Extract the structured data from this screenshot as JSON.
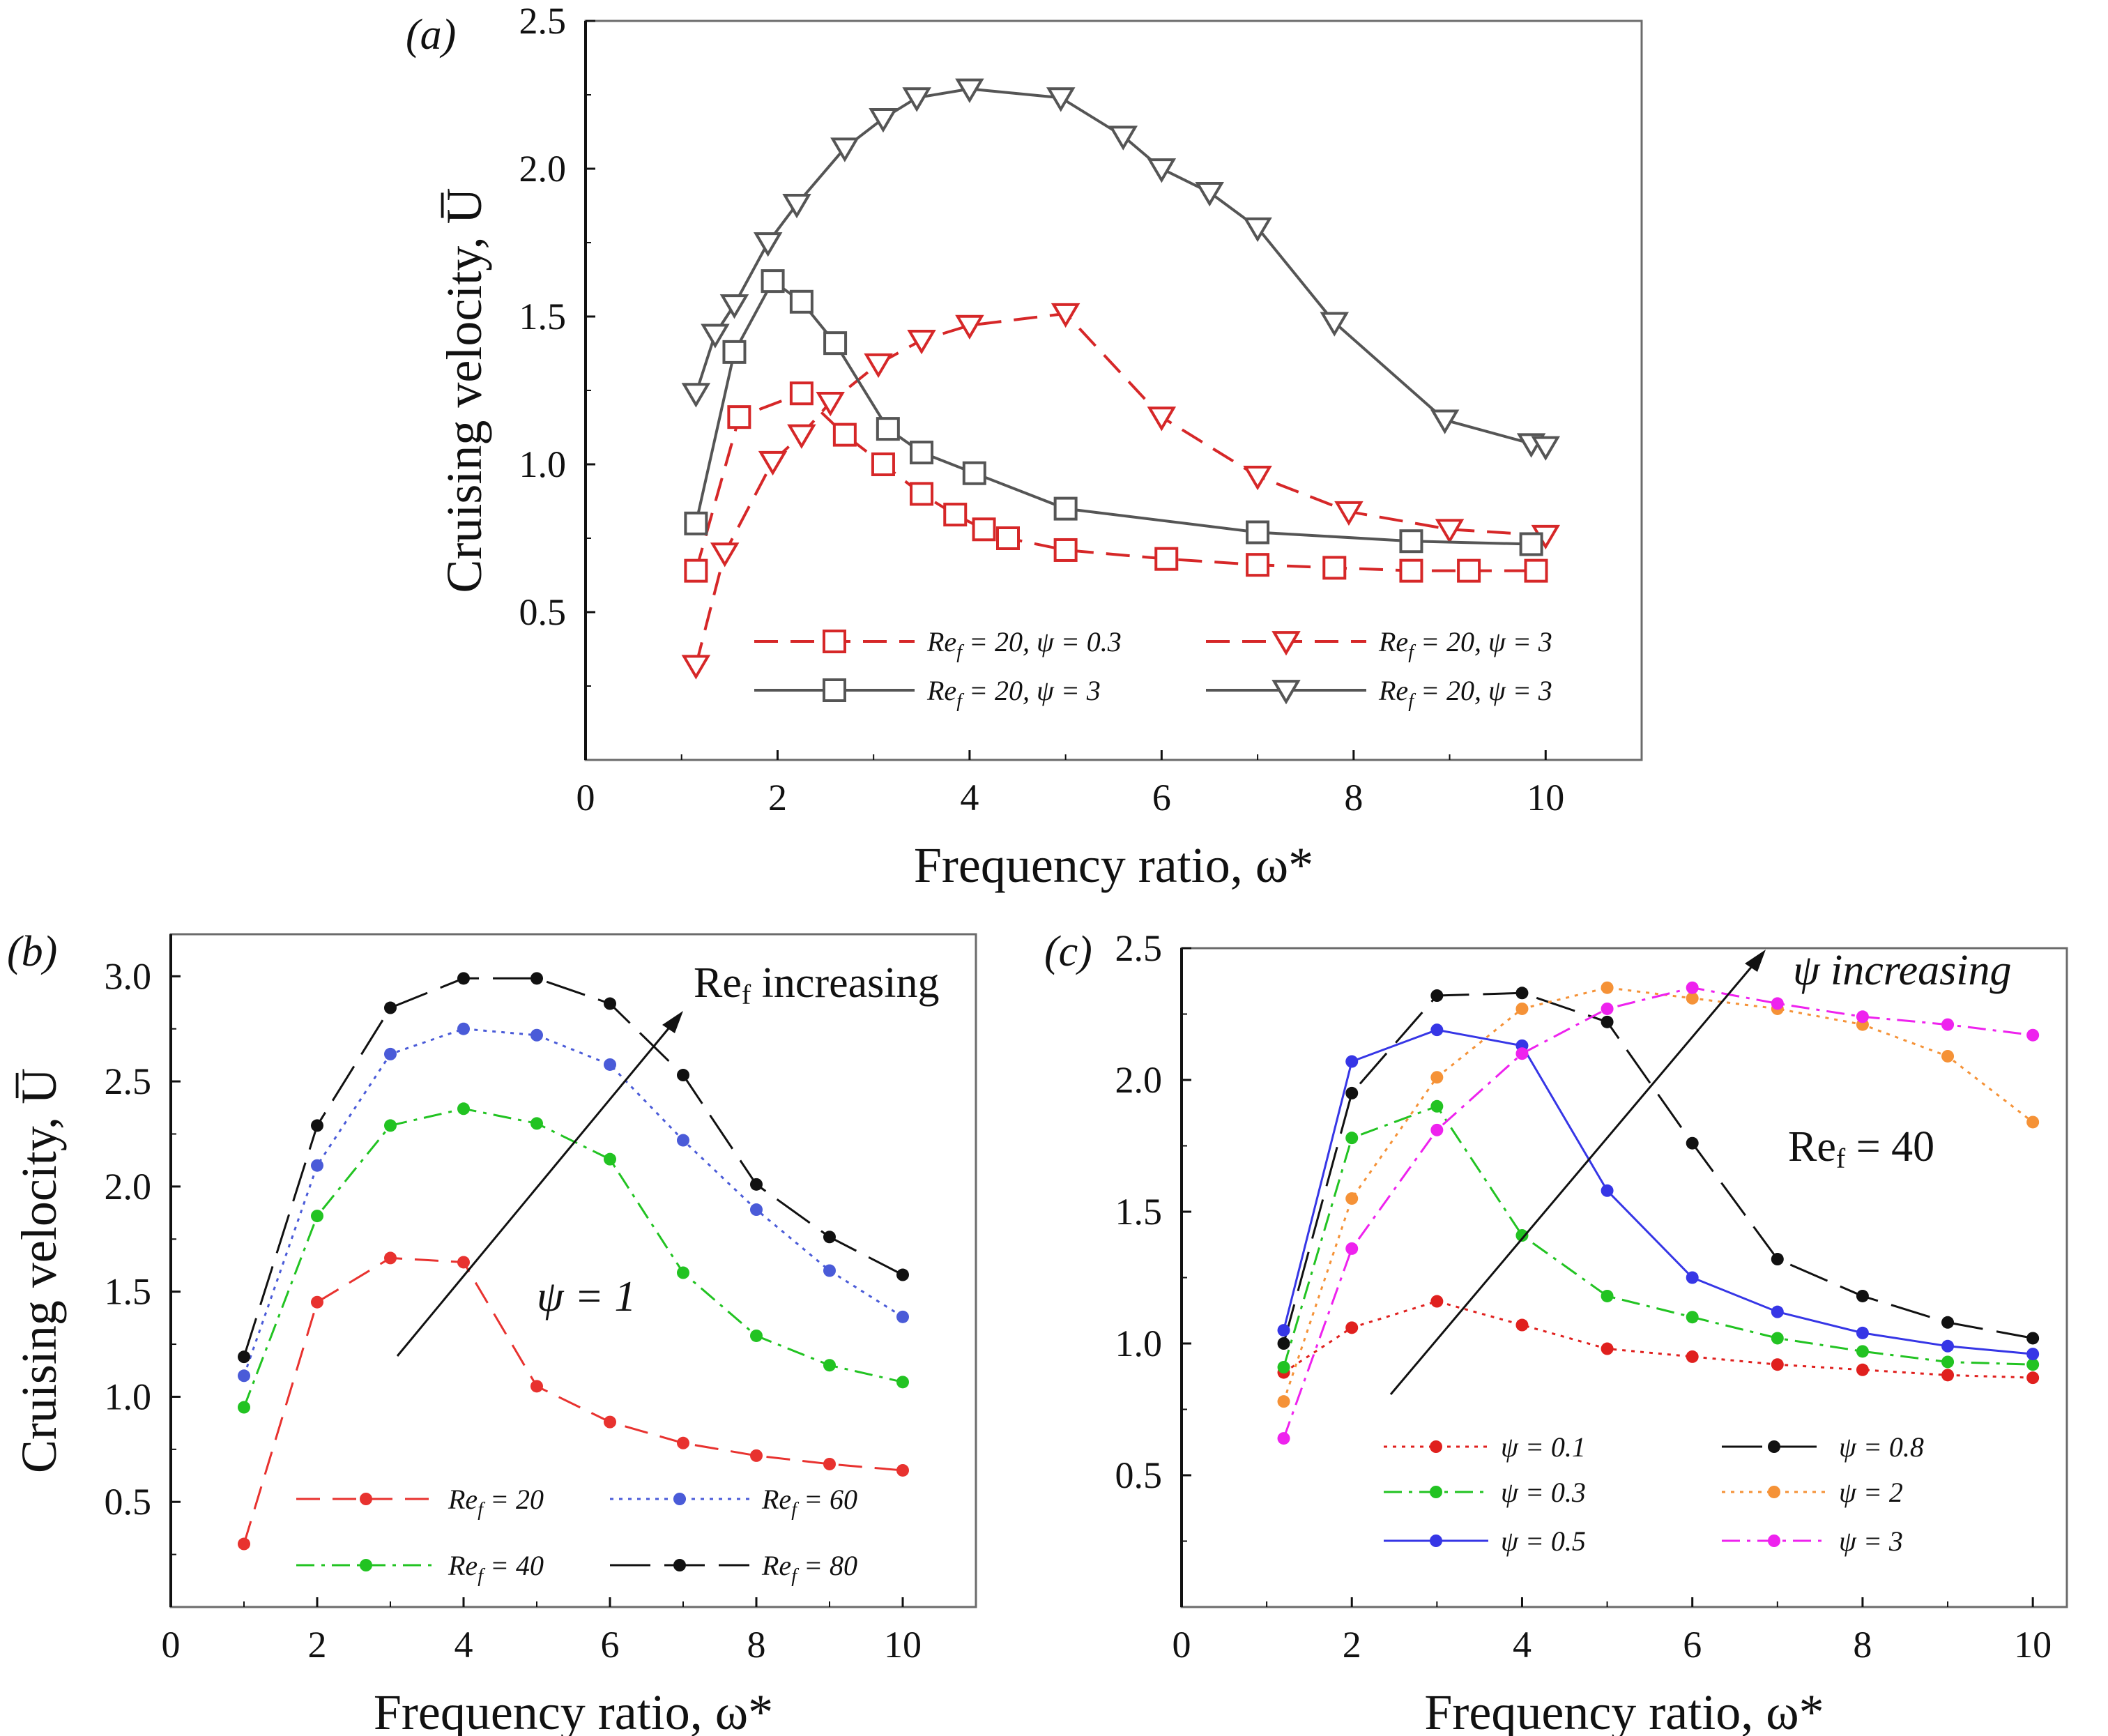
{
  "chart_data": [
    {
      "type": "line",
      "panel_label": "(a)",
      "xlabel": "Frequency ratio, ω*",
      "ylabel": "Cruising velocity, U̅",
      "xlim": [
        0,
        11.0
      ],
      "ylim": [
        0,
        2.5
      ],
      "xticks": [
        "0",
        "2",
        "4",
        "6",
        "8",
        "10"
      ],
      "xtick_values": [
        0,
        2,
        4,
        6,
        8,
        10
      ],
      "yticks": [
        "0.5",
        "1.0",
        "1.5",
        "2.0",
        "2.5"
      ],
      "ytick_values": [
        0.5,
        1.0,
        1.5,
        2.0,
        2.5
      ],
      "legend_position": "lower-middle, two columns",
      "series": [
        {
          "name": "Re_f = 20, ψ = 0.3",
          "label_main": "Re",
          "label_sub": "f",
          "label_rest": " = 20, ψ = 0.3",
          "color": "#d62728",
          "dash": "dashed",
          "marker": "square",
          "x": [
            1.15,
            1.6,
            2.25,
            2.7,
            3.1,
            3.5,
            3.85,
            4.15,
            4.4,
            5.0,
            6.05,
            7.0,
            7.8,
            8.6,
            9.2,
            9.9
          ],
          "y": [
            0.64,
            1.16,
            1.24,
            1.1,
            1.0,
            0.9,
            0.83,
            0.78,
            0.75,
            0.71,
            0.68,
            0.66,
            0.65,
            0.64,
            0.64,
            0.64
          ]
        },
        {
          "name": "Re_f = 20, ψ = 3 (red)",
          "label_main": "Re",
          "label_sub": "f",
          "label_rest": " = 20, ψ = 3",
          "color": "#d62728",
          "dash": "dashed",
          "marker": "triangle-down",
          "x": [
            1.15,
            1.45,
            1.95,
            2.25,
            2.55,
            3.05,
            3.5,
            4.0,
            5.0,
            6.0,
            7.0,
            7.95,
            9.0,
            10.0
          ],
          "y": [
            0.32,
            0.7,
            1.01,
            1.1,
            1.21,
            1.34,
            1.42,
            1.47,
            1.51,
            1.16,
            0.96,
            0.84,
            0.78,
            0.76
          ]
        },
        {
          "name": "Re_f = 20, ψ = 3 (grey, squares)",
          "label_main": "Re",
          "label_sub": "f",
          "label_rest": " = 20, ψ = 3",
          "color": "#555555",
          "dash": "solid",
          "marker": "square",
          "x": [
            1.15,
            1.55,
            1.95,
            2.25,
            2.6,
            3.15,
            3.5,
            4.05,
            5.0,
            7.0,
            8.6,
            9.85
          ],
          "y": [
            0.8,
            1.38,
            1.62,
            1.55,
            1.41,
            1.12,
            1.04,
            0.97,
            0.85,
            0.77,
            0.74,
            0.73
          ]
        },
        {
          "name": "Re_f = 20, ψ = 3 (grey, triangles)",
          "label_main": "Re",
          "label_sub": "f",
          "label_rest": " = 20, ψ = 3",
          "color": "#555555",
          "dash": "solid",
          "marker": "triangle-down",
          "x": [
            1.15,
            1.35,
            1.55,
            1.9,
            2.2,
            2.7,
            3.1,
            3.45,
            4.0,
            4.95,
            5.6,
            6.0,
            6.5,
            7.0,
            7.8,
            8.95,
            9.85,
            10.0
          ],
          "y": [
            1.24,
            1.44,
            1.54,
            1.75,
            1.88,
            2.07,
            2.17,
            2.24,
            2.27,
            2.24,
            2.11,
            2.0,
            1.92,
            1.8,
            1.48,
            1.15,
            1.07,
            1.06
          ]
        }
      ]
    },
    {
      "type": "line",
      "panel_label": "(b)",
      "xlabel": "Frequency ratio, ω*",
      "ylabel": "Cruising velocity, U̅",
      "xlim": [
        0,
        11.0
      ],
      "ylim": [
        0,
        3.2
      ],
      "xticks": [
        "0",
        "2",
        "4",
        "6",
        "8",
        "10"
      ],
      "xtick_values": [
        0,
        2,
        4,
        6,
        8,
        10
      ],
      "yticks": [
        "0.5",
        "1.0",
        "1.5",
        "2.0",
        "2.5",
        "3.0"
      ],
      "ytick_values": [
        0.5,
        1.0,
        1.5,
        2.0,
        2.5,
        3.0
      ],
      "annotations": {
        "arrow_label_main": "Re",
        "arrow_label_sub": "f",
        "arrow_label_rest": " increasing",
        "psi_label": "ψ = 1"
      },
      "series": [
        {
          "name": "Re_f = 20",
          "label_main": "Re",
          "label_sub": "f",
          "label_rest": " = 20",
          "color": "#e8322f",
          "dash": "dashed",
          "x": [
            1,
            2,
            3,
            4,
            5,
            6,
            7,
            8,
            9,
            10
          ],
          "y": [
            0.3,
            1.45,
            1.66,
            1.64,
            1.05,
            0.88,
            0.78,
            0.72,
            0.68,
            0.65
          ]
        },
        {
          "name": "Re_f = 60",
          "label_main": "Re",
          "label_sub": "f",
          "label_rest": " = 60",
          "color": "#4a5bd8",
          "dash": "dotted",
          "x": [
            1,
            2,
            3,
            4,
            5,
            6,
            7,
            8,
            9,
            10
          ],
          "y": [
            1.1,
            2.1,
            2.63,
            2.75,
            2.72,
            2.58,
            2.22,
            1.89,
            1.6,
            1.38
          ]
        },
        {
          "name": "Re_f = 40",
          "label_main": "Re",
          "label_sub": "f",
          "label_rest": " = 40",
          "color": "#22c322",
          "dash": "dashdot",
          "x": [
            1,
            2,
            3,
            4,
            5,
            6,
            7,
            8,
            9,
            10
          ],
          "y": [
            0.95,
            1.86,
            2.29,
            2.37,
            2.3,
            2.13,
            1.59,
            1.29,
            1.15,
            1.07
          ]
        },
        {
          "name": "Re_f = 80",
          "label_main": "Re",
          "label_sub": "f",
          "label_rest": " = 80",
          "color": "#111111",
          "dash": "longdash",
          "x": [
            1,
            2,
            3,
            4,
            5,
            6,
            7,
            8,
            9,
            10
          ],
          "y": [
            1.19,
            2.29,
            2.85,
            2.99,
            2.99,
            2.87,
            2.53,
            2.01,
            1.76,
            1.58
          ]
        }
      ]
    },
    {
      "type": "line",
      "panel_label": "(c)",
      "xlabel": "Frequency ratio, ω*",
      "ylabel": "",
      "xlim": [
        0,
        10.4
      ],
      "ylim": [
        0,
        2.5
      ],
      "xticks": [
        "0",
        "2",
        "4",
        "6",
        "8",
        "10"
      ],
      "xtick_values": [
        0,
        2,
        4,
        6,
        8,
        10
      ],
      "yticks": [
        "0.5",
        "1.0",
        "1.5",
        "2.0",
        "2.5"
      ],
      "ytick_values": [
        0.5,
        1.0,
        1.5,
        2.0,
        2.5
      ],
      "annotations": {
        "arrow_label": "ψ increasing",
        "re_label_main": "Re",
        "re_label_sub": "f",
        "re_label_rest": " = 40"
      },
      "series": [
        {
          "name": "ψ = 0.1",
          "label": "ψ = 0.1",
          "color": "#e0201e",
          "dash": "dotted",
          "x": [
            1.2,
            2,
            3,
            4,
            5,
            6,
            7,
            8,
            9,
            10
          ],
          "y": [
            0.89,
            1.06,
            1.16,
            1.07,
            0.98,
            0.95,
            0.92,
            0.9,
            0.88,
            0.87
          ]
        },
        {
          "name": "ψ = 0.8",
          "label": "ψ = 0.8",
          "color": "#111111",
          "dash": "longdash",
          "x": [
            1.2,
            2,
            3,
            4,
            5,
            6,
            7,
            8,
            9,
            10
          ],
          "y": [
            1.0,
            1.95,
            2.32,
            2.33,
            2.22,
            1.76,
            1.32,
            1.18,
            1.08,
            1.02
          ]
        },
        {
          "name": "ψ = 0.3",
          "label": "ψ = 0.3",
          "color": "#22c322",
          "dash": "dashdot",
          "x": [
            1.2,
            2,
            3,
            4,
            5,
            6,
            7,
            8,
            9,
            10
          ],
          "y": [
            0.91,
            1.78,
            1.9,
            1.41,
            1.18,
            1.1,
            1.02,
            0.97,
            0.93,
            0.92
          ]
        },
        {
          "name": "ψ = 2",
          "label": "ψ = 2",
          "color": "#f59237",
          "dash": "dotted",
          "x": [
            1.2,
            2,
            3,
            4,
            5,
            6,
            7,
            8,
            9,
            10
          ],
          "y": [
            0.78,
            1.55,
            2.01,
            2.27,
            2.35,
            2.31,
            2.27,
            2.21,
            2.09,
            1.84
          ]
        },
        {
          "name": "ψ = 0.5",
          "label": "ψ = 0.5",
          "color": "#3636e6",
          "dash": "solid",
          "x": [
            1.2,
            2,
            3,
            4,
            5,
            6,
            7,
            8,
            9,
            10
          ],
          "y": [
            1.05,
            2.07,
            2.19,
            2.13,
            1.58,
            1.25,
            1.12,
            1.04,
            0.99,
            0.96
          ]
        },
        {
          "name": "ψ = 3",
          "label": "ψ = 3",
          "color": "#ee22ee",
          "dash": "dashdot",
          "x": [
            1.2,
            2,
            3,
            4,
            5,
            6,
            7,
            8,
            9,
            10
          ],
          "y": [
            0.64,
            1.36,
            1.81,
            2.1,
            2.27,
            2.35,
            2.29,
            2.24,
            2.21,
            2.17
          ]
        }
      ]
    }
  ]
}
